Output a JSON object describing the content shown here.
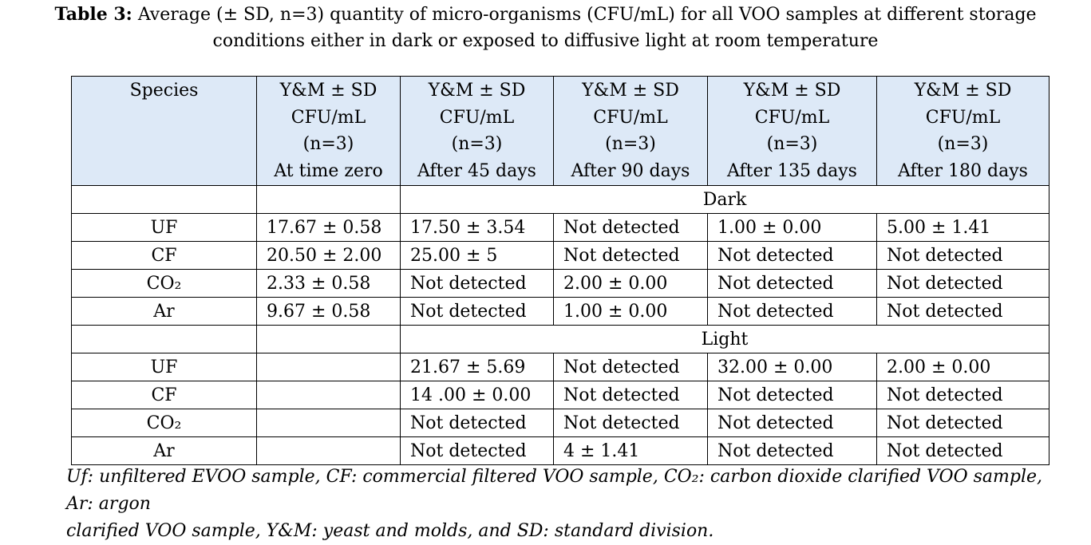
{
  "caption": {
    "label": "Table 3:",
    "line1": "Average (± SD, n=3) quantity of micro-organisms (CFU/mL) for all VOO samples at different storage",
    "line2": "conditions either in dark or exposed to diffusive light at room temperature"
  },
  "table": {
    "headers": [
      {
        "lines": [
          "Species"
        ]
      },
      {
        "lines": [
          "Y&M ± SD",
          "CFU/mL",
          "(n=3)",
          "At time zero"
        ]
      },
      {
        "lines": [
          "Y&M ± SD",
          "CFU/mL",
          "(n=3)",
          "After 45 days"
        ]
      },
      {
        "lines": [
          "Y&M ± SD",
          "CFU/mL",
          "(n=3)",
          "After 90 days"
        ]
      },
      {
        "lines": [
          "Y&M ± SD",
          "CFU/mL",
          "(n=3)",
          "After 135 days"
        ]
      },
      {
        "lines": [
          "Y&M ± SD",
          "CFU/mL",
          "(n=3)",
          "After 180 days"
        ]
      }
    ],
    "sections": [
      {
        "title": "Dark",
        "rows": [
          {
            "species": "UF",
            "values": [
              "17.67 ± 0.58",
              "17.50 ± 3.54",
              "Not detected",
              "1.00 ± 0.00",
              "5.00 ± 1.41"
            ]
          },
          {
            "species": "CF",
            "values": [
              "20.50 ± 2.00",
              "25.00 ± 5",
              "Not detected",
              "Not detected",
              "Not detected"
            ]
          },
          {
            "species": "CO₂",
            "values": [
              "2.33 ± 0.58",
              "Not detected",
              "2.00 ± 0.00",
              "Not detected",
              "Not detected"
            ]
          },
          {
            "species": "Ar",
            "values": [
              "9.67 ± 0.58",
              "Not detected",
              "1.00 ± 0.00",
              "Not detected",
              "Not detected"
            ]
          }
        ]
      },
      {
        "title": "Light",
        "rows": [
          {
            "species": "UF",
            "values": [
              "",
              "21.67 ± 5.69",
              "Not detected",
              "32.00 ± 0.00",
              "2.00 ± 0.00"
            ]
          },
          {
            "species": "CF",
            "values": [
              "",
              "14 .00 ± 0.00",
              "Not detected",
              "Not detected",
              "Not detected"
            ]
          },
          {
            "species": "CO₂",
            "values": [
              "",
              "Not detected",
              "Not detected",
              "Not detected",
              "Not detected"
            ]
          },
          {
            "species": "Ar",
            "values": [
              "",
              "Not detected",
              "4 ± 1.41",
              "Not detected",
              "Not detected"
            ]
          }
        ]
      }
    ]
  },
  "footnote": {
    "line1": "Uf: unfiltered EVOO sample, CF: commercial filtered VOO sample, CO₂: carbon dioxide clarified VOO sample, Ar: argon",
    "line2": "clarified VOO sample, Y&M: yeast and molds, and SD: standard division."
  }
}
